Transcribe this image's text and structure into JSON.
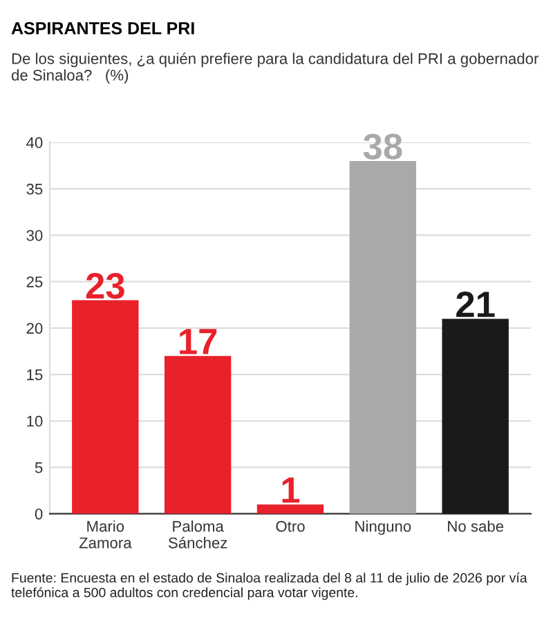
{
  "chart_data": {
    "type": "bar",
    "title": "ASPIRANTES DEL PRI",
    "subtitle": "De los siguientes, ¿a quién prefiere para la candidatura del PRI a gobernador de Sinaloa?   (%)",
    "categories": [
      "Mario\nZamora",
      "Paloma\nSánchez",
      "Otro",
      "Ninguno",
      "No sabe"
    ],
    "values": [
      23,
      17,
      1,
      38,
      21
    ],
    "colors": [
      "#e8212b",
      "#e8212b",
      "#e8212b",
      "#a9a9a9",
      "#1a1a1a"
    ],
    "ylim": [
      0,
      40
    ],
    "yticks": [
      0,
      5,
      10,
      15,
      20,
      25,
      30,
      35,
      40
    ],
    "grid": "y",
    "data_labels": true,
    "annotations": [
      "Fuente: Encuesta en el estado de Sinaloa realizada del 8 al 11 de julio de 2026 por vía telefónica a 500 adultos con credencial para votar vigente."
    ]
  }
}
